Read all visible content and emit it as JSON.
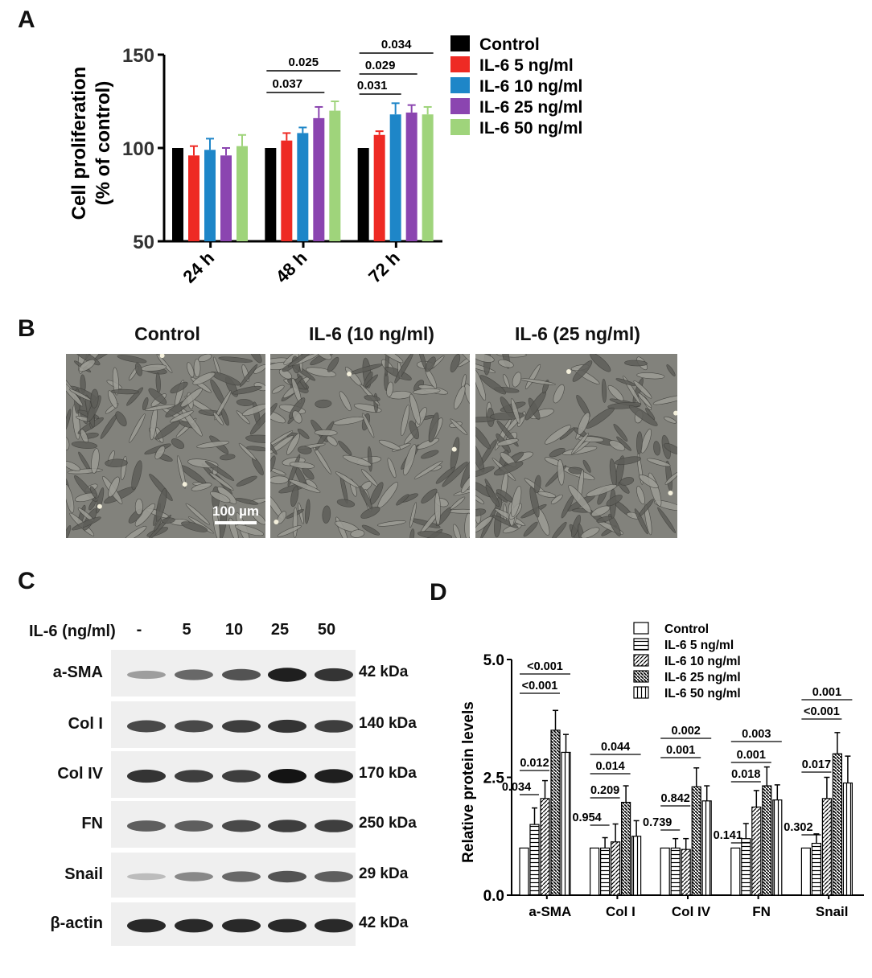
{
  "panels": {
    "a": "A",
    "b": "B",
    "c": "C",
    "d": "D"
  },
  "colors": {
    "control": "#000000",
    "il6_5": "#ee2a24",
    "il6_10": "#1e86c8",
    "il6_25": "#8b45b0",
    "il6_50": "#9fd47b"
  },
  "chart_data": [
    {
      "type": "bar",
      "title": "",
      "ylabel_lines": [
        "Cell proliferation",
        "(% of control)"
      ],
      "xlabel": "",
      "categories": [
        "24 h",
        "48 h",
        "72 h"
      ],
      "ylim": [
        50,
        150
      ],
      "yticks": [
        "50",
        "100",
        "150"
      ],
      "legend_position": "top-right",
      "series": [
        {
          "name": "Control",
          "values": [
            100,
            100,
            100
          ],
          "errors": [
            0,
            0,
            0
          ]
        },
        {
          "name": "IL-6 5 ng/ml",
          "values": [
            96,
            104,
            107
          ],
          "errors": [
            5,
            4,
            2
          ]
        },
        {
          "name": "IL-6 10 ng/ml",
          "values": [
            99,
            108,
            118
          ],
          "errors": [
            6,
            3,
            6
          ]
        },
        {
          "name": "IL-6 25 ng/ml",
          "values": [
            96,
            116,
            119
          ],
          "errors": [
            4,
            6,
            4
          ]
        },
        {
          "name": "IL-6 50 ng/ml",
          "values": [
            101,
            120,
            118
          ],
          "errors": [
            6,
            5,
            4
          ]
        }
      ],
      "annotations": [
        {
          "text": "0.025",
          "category": "48 h",
          "from_series": 0,
          "to_series": 4
        },
        {
          "text": "0.037",
          "category": "48 h",
          "from_series": 0,
          "to_series": 3
        },
        {
          "text": "0.034",
          "category": "72 h",
          "from_series": 0,
          "to_series": 4
        },
        {
          "text": "0.029",
          "category": "72 h",
          "from_series": 0,
          "to_series": 3
        },
        {
          "text": "0.031",
          "category": "72 h",
          "from_series": 0,
          "to_series": 2
        }
      ]
    },
    {
      "type": "bar",
      "title": "",
      "ylabel": "Relative protein levels",
      "xlabel": "",
      "categories": [
        "a-SMA",
        "Col I",
        "Col IV",
        "FN",
        "Snail"
      ],
      "ylim": [
        0,
        5
      ],
      "yticks": [
        "0.0",
        "2.5",
        "5.0"
      ],
      "legend_position": "top-right",
      "series": [
        {
          "name": "Control",
          "values": [
            1.0,
            1.0,
            1.0,
            1.0,
            1.0
          ],
          "errors": [
            0,
            0,
            0,
            0,
            0
          ]
        },
        {
          "name": "IL-6 5 ng/ml",
          "values": [
            1.5,
            1.0,
            1.0,
            1.2,
            1.1
          ],
          "errors": [
            0.35,
            0.22,
            0.2,
            0.32,
            0.2
          ]
        },
        {
          "name": "IL-6 10 ng/ml",
          "values": [
            2.05,
            1.13,
            0.97,
            1.87,
            2.05
          ],
          "errors": [
            0.38,
            0.38,
            0.23,
            0.35,
            0.45
          ]
        },
        {
          "name": "IL-6 25 ng/ml",
          "values": [
            3.5,
            1.97,
            2.3,
            2.32,
            3.0
          ],
          "errors": [
            0.42,
            0.35,
            0.4,
            0.4,
            0.45
          ]
        },
        {
          "name": "IL-6 50 ng/ml",
          "values": [
            3.03,
            1.25,
            2.0,
            2.02,
            2.38
          ],
          "errors": [
            0.38,
            0.33,
            0.32,
            0.32,
            0.57
          ]
        }
      ],
      "annotations": [
        {
          "text": "<0.001",
          "category": "a-SMA",
          "from_series": 0,
          "to_series": 4,
          "level": 4
        },
        {
          "text": "<0.001",
          "category": "a-SMA",
          "from_series": 0,
          "to_series": 3,
          "level": 3
        },
        {
          "text": "0.012",
          "category": "a-SMA",
          "from_series": 0,
          "to_series": 2,
          "level": 2
        },
        {
          "text": "0.034",
          "category": "a-SMA",
          "from_series": 0,
          "to_series": 1,
          "level": 1
        },
        {
          "text": "0.044",
          "category": "Col I",
          "from_series": 0,
          "to_series": 4,
          "level": 4
        },
        {
          "text": "0.014",
          "category": "Col I",
          "from_series": 0,
          "to_series": 3,
          "level": 3
        },
        {
          "text": "0.209",
          "category": "Col I",
          "from_series": 0,
          "to_series": 2,
          "level": 2
        },
        {
          "text": "0.954",
          "category": "Col I",
          "from_series": 0,
          "to_series": 1,
          "level": 1
        },
        {
          "text": "0.002",
          "category": "Col IV",
          "from_series": 0,
          "to_series": 4,
          "level": 4
        },
        {
          "text": "0.001",
          "category": "Col IV",
          "from_series": 0,
          "to_series": 3,
          "level": 3
        },
        {
          "text": "0.842",
          "category": "Col IV",
          "from_series": 0,
          "to_series": 2,
          "level": 2
        },
        {
          "text": "0.739",
          "category": "Col IV",
          "from_series": 0,
          "to_series": 1,
          "level": 1
        },
        {
          "text": "0.003",
          "category": "FN",
          "from_series": 0,
          "to_series": 4,
          "level": 4
        },
        {
          "text": "0.001",
          "category": "FN",
          "from_series": 0,
          "to_series": 3,
          "level": 3
        },
        {
          "text": "0.018",
          "category": "FN",
          "from_series": 0,
          "to_series": 2,
          "level": 2
        },
        {
          "text": "0.141",
          "category": "FN",
          "from_series": 0,
          "to_series": 1,
          "level": 1
        },
        {
          "text": "0.001",
          "category": "Snail",
          "from_series": 0,
          "to_series": 4,
          "level": 4
        },
        {
          "text": "<0.001",
          "category": "Snail",
          "from_series": 0,
          "to_series": 3,
          "level": 3
        },
        {
          "text": "0.017",
          "category": "Snail",
          "from_series": 0,
          "to_series": 2,
          "level": 2
        },
        {
          "text": "0.302",
          "category": "Snail",
          "from_series": 0,
          "to_series": 1,
          "level": 1
        }
      ]
    }
  ],
  "microscopy": {
    "titles": [
      "Control",
      "IL-6 (10 ng/ml)",
      "IL-6 (25 ng/ml)"
    ],
    "scale_bar": "100 µm"
  },
  "western": {
    "header_label": "IL-6 (ng/ml)",
    "lanes": [
      "-",
      "5",
      "10",
      "25",
      "50"
    ],
    "rows": [
      {
        "protein": "a-SMA",
        "kda": "42 kDa",
        "intensity": [
          0.35,
          0.6,
          0.7,
          0.95,
          0.85
        ]
      },
      {
        "protein": "Col I",
        "kda": "140 kDa",
        "intensity": [
          0.75,
          0.75,
          0.8,
          0.85,
          0.8
        ]
      },
      {
        "protein": "Col IV",
        "kda": "170 kDa",
        "intensity": [
          0.85,
          0.8,
          0.8,
          1.0,
          0.95
        ]
      },
      {
        "protein": "FN",
        "kda": "250 kDa",
        "intensity": [
          0.65,
          0.65,
          0.75,
          0.8,
          0.8
        ]
      },
      {
        "protein": "Snail",
        "kda": "29 kDa",
        "intensity": [
          0.2,
          0.45,
          0.6,
          0.7,
          0.65
        ]
      },
      {
        "protein": "β-actin",
        "kda": "42 kDa",
        "intensity": [
          0.9,
          0.9,
          0.9,
          0.9,
          0.9
        ]
      }
    ]
  }
}
